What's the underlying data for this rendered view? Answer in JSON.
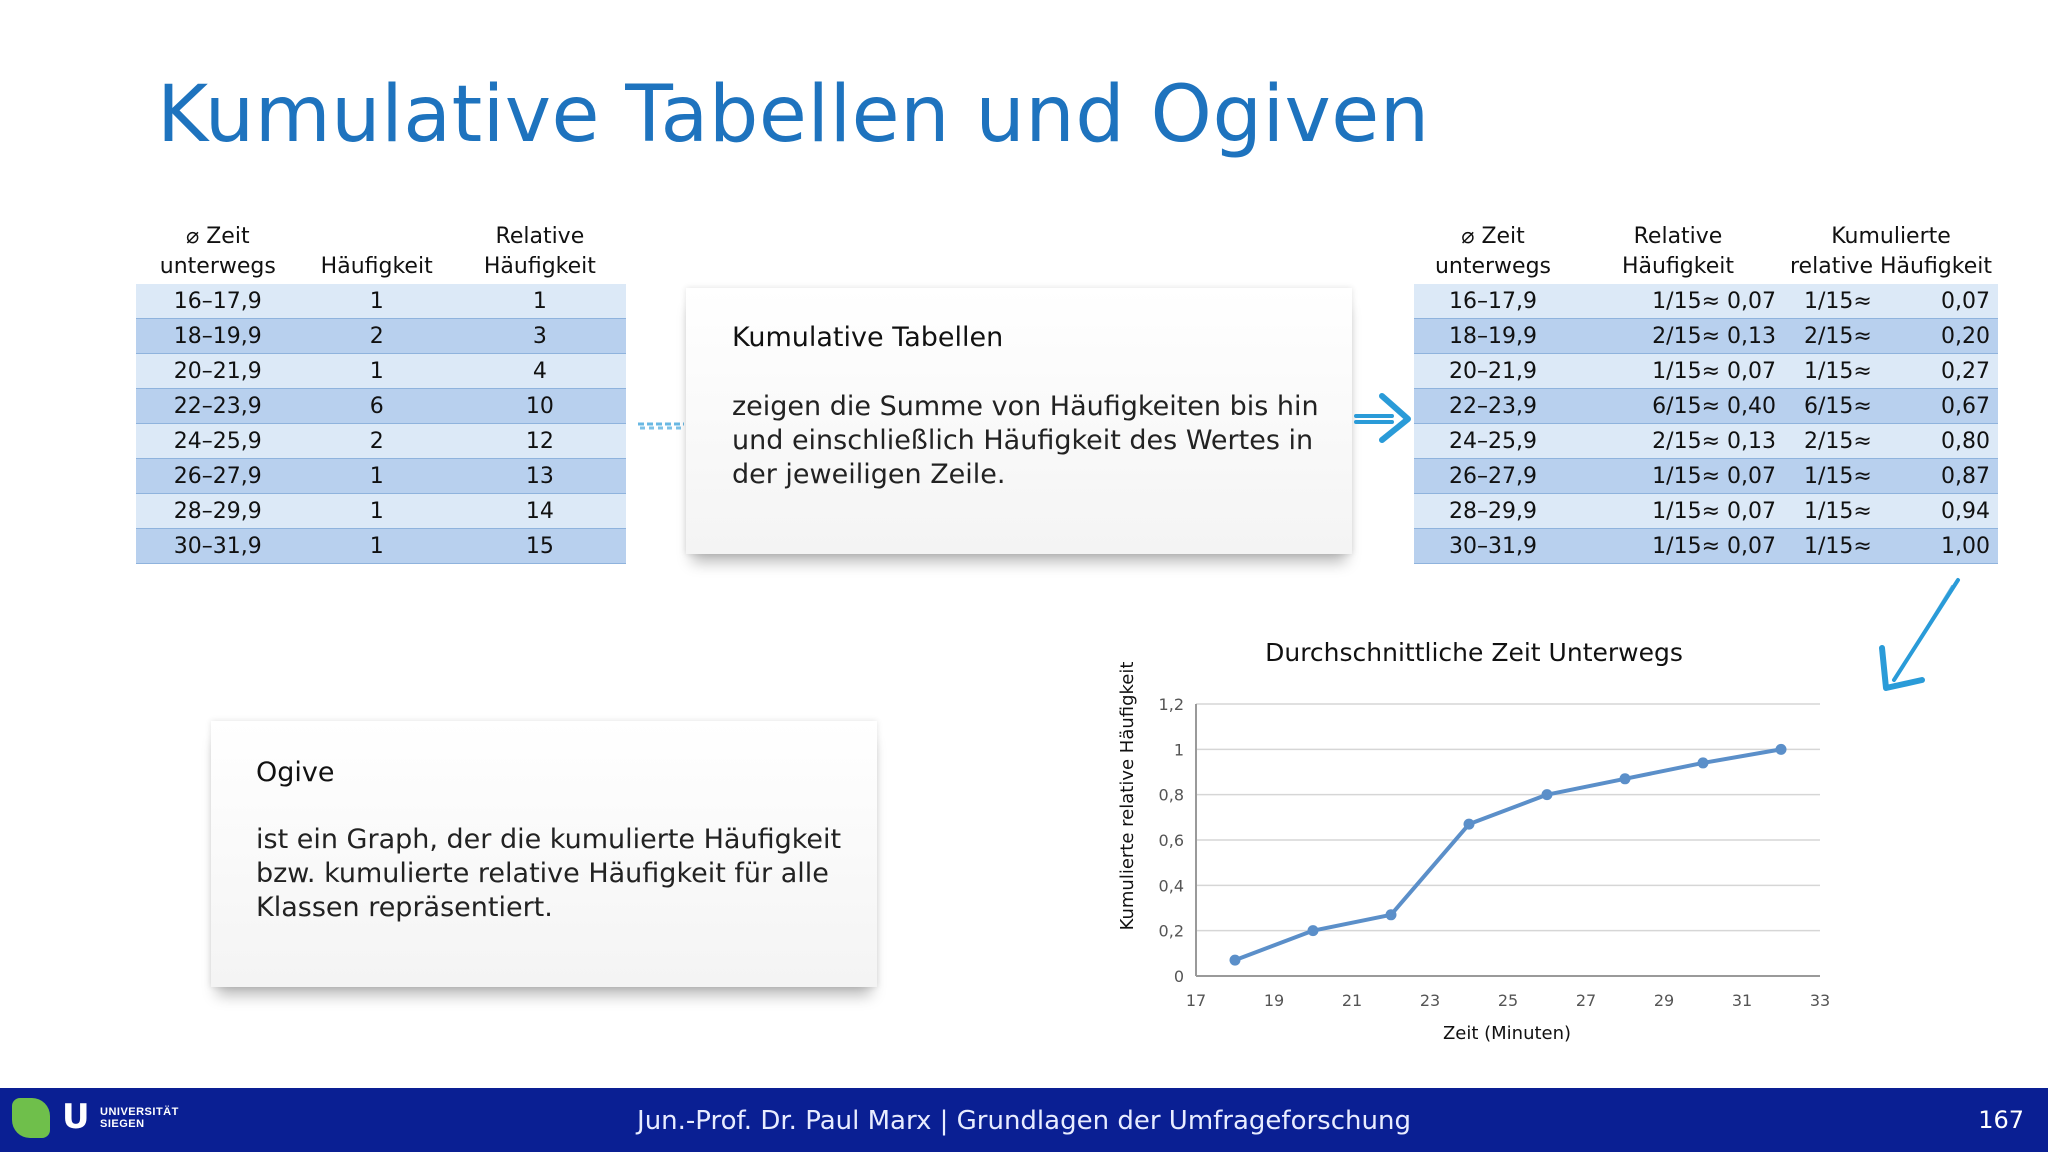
{
  "slide": {
    "title": "Kumulative Tabellen und Ogiven"
  },
  "left_table": {
    "headers": [
      "⌀ Zeit\nunterwegs",
      "Häufigkeit",
      "Relative\nHäufigkeit"
    ],
    "rows": [
      [
        "16–17,9",
        "1",
        "1"
      ],
      [
        "18–19,9",
        "2",
        "3"
      ],
      [
        "20–21,9",
        "1",
        "4"
      ],
      [
        "22–23,9",
        "6",
        "10"
      ],
      [
        "24–25,9",
        "2",
        "12"
      ],
      [
        "26–27,9",
        "1",
        "13"
      ],
      [
        "28–29,9",
        "1",
        "14"
      ],
      [
        "30–31,9",
        "1",
        "15"
      ]
    ]
  },
  "right_table": {
    "headers": [
      "⌀ Zeit\nunterwegs",
      "Relative Häufigkeit",
      "Kumulierte\nrelative Häufigkeit"
    ],
    "rows": [
      [
        "16–17,9",
        "1/15≈ 0,07",
        "1/15≈",
        "0,07"
      ],
      [
        "18–19,9",
        "2/15≈ 0,13",
        "2/15≈",
        "0,20"
      ],
      [
        "20–21,9",
        "1/15≈ 0,07",
        "1/15≈",
        "0,27"
      ],
      [
        "22–23,9",
        "6/15≈ 0,40",
        "6/15≈",
        "0,67"
      ],
      [
        "24–25,9",
        "2/15≈ 0,13",
        "2/15≈",
        "0,80"
      ],
      [
        "26–27,9",
        "1/15≈ 0,07",
        "1/15≈",
        "0,87"
      ],
      [
        "28–29,9",
        "1/15≈ 0,07",
        "1/15≈",
        "0,94"
      ],
      [
        "30–31,9",
        "1/15≈ 0,07",
        "1/15≈",
        "1,00"
      ]
    ]
  },
  "card_kumulativ": {
    "heading": "Kumulative Tabellen",
    "text": "zeigen die Summe von Häufigkeiten bis hin und einschließlich Häufigkeit des Wertes in der jeweiligen Zeile."
  },
  "card_ogive": {
    "heading": "Ogive",
    "text": "ist ein Graph, der die kumulierte Häufigkeit bzw. kumulierte relative Häufigkeit für alle Klassen repräsentiert."
  },
  "chart_data": {
    "type": "line",
    "title": "Durchschnittliche Zeit Unterwegs",
    "xlabel": "Zeit (Minuten)",
    "ylabel": "Kumulierte relative Häufigkeit",
    "xlim": [
      17,
      33
    ],
    "ylim": [
      0,
      1.2
    ],
    "x_ticks": [
      "17",
      "19",
      "21",
      "23",
      "25",
      "27",
      "29",
      "31",
      "33"
    ],
    "y_ticks": [
      "0",
      "0,2",
      "0,4",
      "0,6",
      "0,8",
      "1",
      "1,2"
    ],
    "x": [
      18,
      20,
      22,
      24,
      26,
      28,
      30,
      32
    ],
    "y": [
      0.07,
      0.2,
      0.27,
      0.67,
      0.8,
      0.87,
      0.94,
      1.0
    ],
    "color": "#5b8fc9",
    "grid": true
  },
  "footer": {
    "university": "UNIVERSITÄT\nSIEGEN",
    "course": "Jun.-Prof. Dr. Paul Marx | Grundlagen der Umfrageforschung",
    "page_number": "167"
  },
  "colors": {
    "title": "#1e73be",
    "footer_bg": "#0a1f93",
    "row_light": "#dce9f7",
    "row_dark": "#b8d0ee",
    "arrow": "#2a9bd8"
  }
}
